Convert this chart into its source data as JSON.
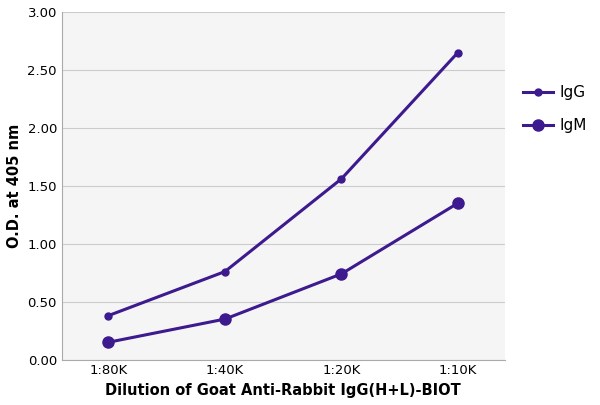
{
  "x_labels": [
    "1:80K",
    "1:40K",
    "1:20K",
    "1:10K"
  ],
  "x_positions": [
    0,
    1,
    2,
    3
  ],
  "IgG_values": [
    0.38,
    0.76,
    1.56,
    2.65
  ],
  "IgM_values": [
    0.15,
    0.35,
    0.74,
    1.35
  ],
  "line_color": "#3d1a8e",
  "marker_IgG": "o",
  "marker_IgM": "o",
  "marker_size_IgG": 5,
  "marker_size_IgM": 8,
  "line_width": 2.2,
  "xlabel": "Dilution of Goat Anti-Rabbit IgG(H+L)-BIOT",
  "ylabel": "O.D. at 405 nm",
  "ylim": [
    0.0,
    3.0
  ],
  "yticks": [
    0.0,
    0.5,
    1.0,
    1.5,
    2.0,
    2.5,
    3.0
  ],
  "legend_labels": [
    "IgG",
    "IgM"
  ],
  "xlabel_fontsize": 10.5,
  "ylabel_fontsize": 10.5,
  "tick_fontsize": 9.5,
  "legend_fontsize": 11,
  "background_color": "#ffffff",
  "plot_bg_color": "#f5f5f5",
  "grid_color": "#cccccc",
  "spine_color": "#aaaaaa"
}
